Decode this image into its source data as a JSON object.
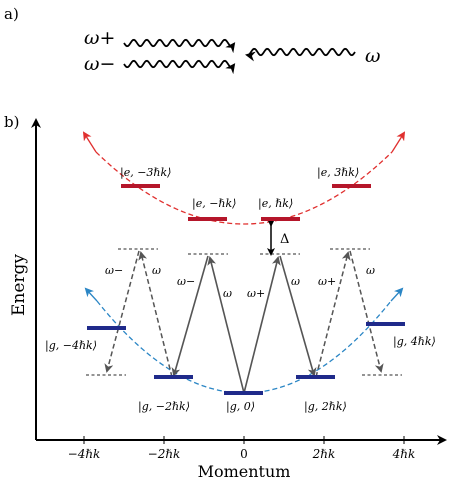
{
  "panel_a": {
    "label": "a)",
    "beam_left_top": "ω+",
    "beam_left_bottom": "ω−",
    "beam_right": "ω"
  },
  "panel_b": {
    "label": "b)",
    "y_axis_label": "Energy",
    "x_axis_label": "Momentum",
    "x_ticks": [
      "−4ℏk",
      "−2ℏk",
      "0",
      "2ℏk",
      "4ℏk"
    ],
    "excited_states": [
      "|e, −3ℏk⟩",
      "|e, −ℏk⟩",
      "|e, ℏk⟩",
      "|e, 3ℏk⟩"
    ],
    "ground_states": [
      "|g, −4ℏk⟩",
      "|g, −2ℏk⟩",
      "|g, 0⟩",
      "|g, 2ℏk⟩",
      "|g, 4ℏk⟩"
    ],
    "detuning": "Δ",
    "transition_labels": [
      "ω−",
      "ω",
      "ω−",
      "ω",
      "ω+",
      "ω",
      "ω+",
      "ω"
    ],
    "colors": {
      "excited": "#b5162a",
      "ground": "#1f2a8a",
      "excited_parabola": "#e0302f",
      "ground_parabola": "#2b86c5",
      "arrow": "#555555"
    }
  }
}
